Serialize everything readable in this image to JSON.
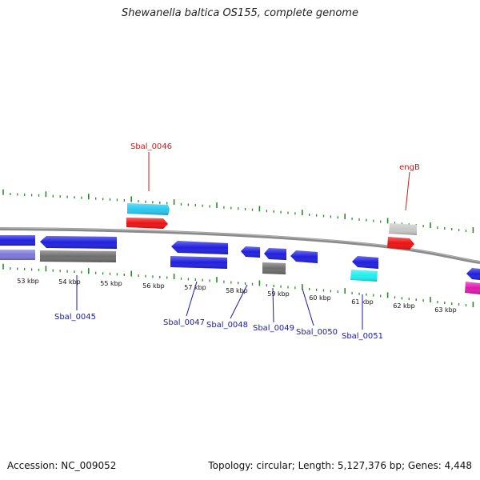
{
  "title": "Shewanella baltica OS155, complete genome",
  "footer": {
    "accession": "Accession: NC_009052",
    "summary": "Topology: circular; Length: 5,127,376 bp; Genes: 4,448"
  },
  "colors": {
    "backbone": "#8a8a8a",
    "tick": "#2a8a2a",
    "label_blue": "#1a1aa8",
    "label_red": "#cc1a1a",
    "gene_blue": "#1f1fe0",
    "gene_gray": "#6e6e6e",
    "gene_cyan": "#27c8ef",
    "gene_red": "#ee1111",
    "gene_light_gray": "#c8c8c8",
    "gene_lavender": "#7b78d8",
    "gene_aqua": "#1fefef",
    "gene_magenta": "#e01ab0"
  },
  "kbp_labels": [
    "53 kbp",
    "54 kbp",
    "55 kbp",
    "56 kbp",
    "57 kbp",
    "58 kbp",
    "59 kbp",
    "60 kbp",
    "61 kbp",
    "62 kbp",
    "63 kbp"
  ],
  "gene_labels": [
    {
      "name": "Sbal_0046",
      "color": "red"
    },
    {
      "name": "engB",
      "color": "red"
    },
    {
      "name": "Sbal_0045",
      "color": "blue"
    },
    {
      "name": "Sbal_0047",
      "color": "blue"
    },
    {
      "name": "Sbal_0048",
      "color": "blue"
    },
    {
      "name": "Sbal_0049",
      "color": "blue"
    },
    {
      "name": "Sbal_0050",
      "color": "blue"
    },
    {
      "name": "Sbal_0051",
      "color": "blue"
    }
  ]
}
